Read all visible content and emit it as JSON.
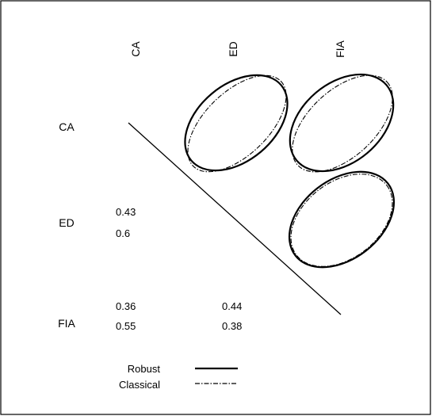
{
  "chart_data": {
    "type": "correlation-ellipse-matrix",
    "variables": [
      "CA",
      "ED",
      "FIA"
    ],
    "correlations": [
      {
        "row": "ED",
        "col": "CA",
        "robust": 0.43,
        "classical": 0.6
      },
      {
        "row": "FIA",
        "col": "CA",
        "robust": 0.36,
        "classical": 0.55
      },
      {
        "row": "FIA",
        "col": "ED",
        "robust": 0.44,
        "classical": 0.38
      }
    ],
    "legend": {
      "placement": "bottom-center",
      "items": [
        {
          "label": "Robust",
          "style": "solid"
        },
        {
          "label": "Classical",
          "style": "dash-dot"
        }
      ]
    }
  }
}
